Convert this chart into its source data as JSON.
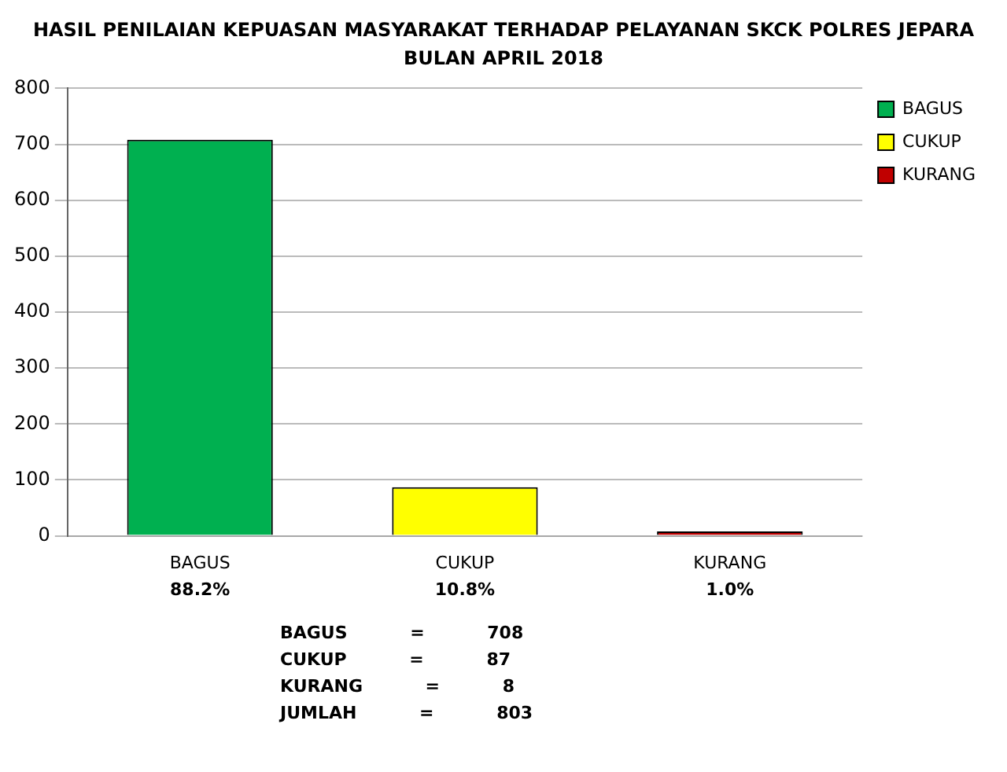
{
  "chart_data": {
    "type": "bar",
    "title": "HASIL PENILAIAN KEPUASAN MASYARAKAT TERHADAP PELAYANAN SKCK POLRES JEPARA",
    "subtitle": "BULAN APRIL 2018",
    "categories": [
      "BAGUS",
      "CUKUP",
      "KURANG"
    ],
    "series": [
      {
        "name": "BAGUS",
        "color": "#00b050",
        "values": [
          708,
          null,
          null
        ]
      },
      {
        "name": "CUKUP",
        "color": "#ffff00",
        "values": [
          null,
          87,
          null
        ]
      },
      {
        "name": "KURANG",
        "color": "#c00000",
        "values": [
          null,
          null,
          8
        ]
      }
    ],
    "ylim": [
      0,
      800
    ],
    "yticks": [
      0,
      100,
      200,
      300,
      400,
      500,
      600,
      700,
      800
    ],
    "grid": "y",
    "legend": "top right",
    "annotations": [
      "88.2%",
      "10.8%",
      "1.0%",
      "BAGUS = 708",
      "CUKUP = 87",
      "KURANG = 8",
      "JUMLAH = 803"
    ]
  }
}
